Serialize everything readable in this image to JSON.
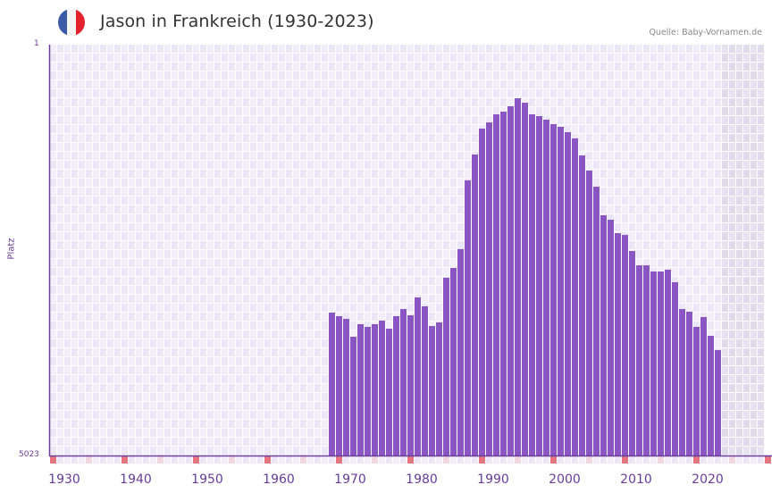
{
  "header": {
    "title": "Jason in Frankreich (1930-2023)",
    "source": "Quelle: Baby-Vornamen.de",
    "flag": {
      "icon": "france-flag-icon",
      "colors": [
        "#3b5aa8",
        "#f4f4f4",
        "#e3222e"
      ]
    }
  },
  "axis": {
    "y_title": "Platz",
    "y_top_label": "1",
    "y_bottom_label": "5023"
  },
  "colors": {
    "bar": "#8b56c4",
    "axis": "#6a3d9a",
    "grid_a": "#f2effb",
    "grid_b": "#ece7f7",
    "future_a": "#e6e2ef",
    "future_b": "#e0dbea",
    "marker_decade": "#e57580",
    "marker_half": "#f2d6df",
    "marker_a": "#f2effb",
    "marker_b": "#ece7f7",
    "title": "#333333",
    "source": "#8a8a8a"
  },
  "chart_data": {
    "type": "bar",
    "title": "Jason in Frankreich (1930-2023)",
    "xlabel": "",
    "ylabel": "Platz",
    "y_inverted": true,
    "ylim": [
      1,
      5023
    ],
    "xlim": [
      1928,
      2028
    ],
    "grid": true,
    "legend": null,
    "x_ticks": [
      1930,
      1940,
      1950,
      1960,
      1970,
      1980,
      1990,
      2000,
      2010,
      2020
    ],
    "future_shaded_from": 2022,
    "x": [
      1967,
      1968,
      1969,
      1970,
      1971,
      1972,
      1973,
      1974,
      1975,
      1976,
      1977,
      1978,
      1979,
      1980,
      1981,
      1982,
      1983,
      1984,
      1985,
      1986,
      1987,
      1988,
      1989,
      1990,
      1991,
      1992,
      1993,
      1994,
      1995,
      1996,
      1997,
      1998,
      1999,
      2000,
      2001,
      2002,
      2003,
      2004,
      2005,
      2006,
      2007,
      2008,
      2009,
      2010,
      2011,
      2012,
      2013,
      2014,
      2015,
      2016,
      2017,
      2018,
      2019,
      2020,
      2021
    ],
    "values": [
      3276,
      3320,
      3353,
      3571,
      3418,
      3451,
      3418,
      3374,
      3473,
      3320,
      3233,
      3309,
      3091,
      3200,
      3440,
      3396,
      2850,
      2730,
      2501,
      1660,
      1344,
      1027,
      951,
      853,
      820,
      754,
      656,
      711,
      853,
      874,
      918,
      973,
      1005,
      1071,
      1147,
      1355,
      1540,
      1737,
      2086,
      2141,
      2305,
      2327,
      2523,
      2698,
      2698,
      2774,
      2774,
      2752,
      2905,
      3233,
      3265,
      3451,
      3331,
      3560,
      3735
    ]
  }
}
